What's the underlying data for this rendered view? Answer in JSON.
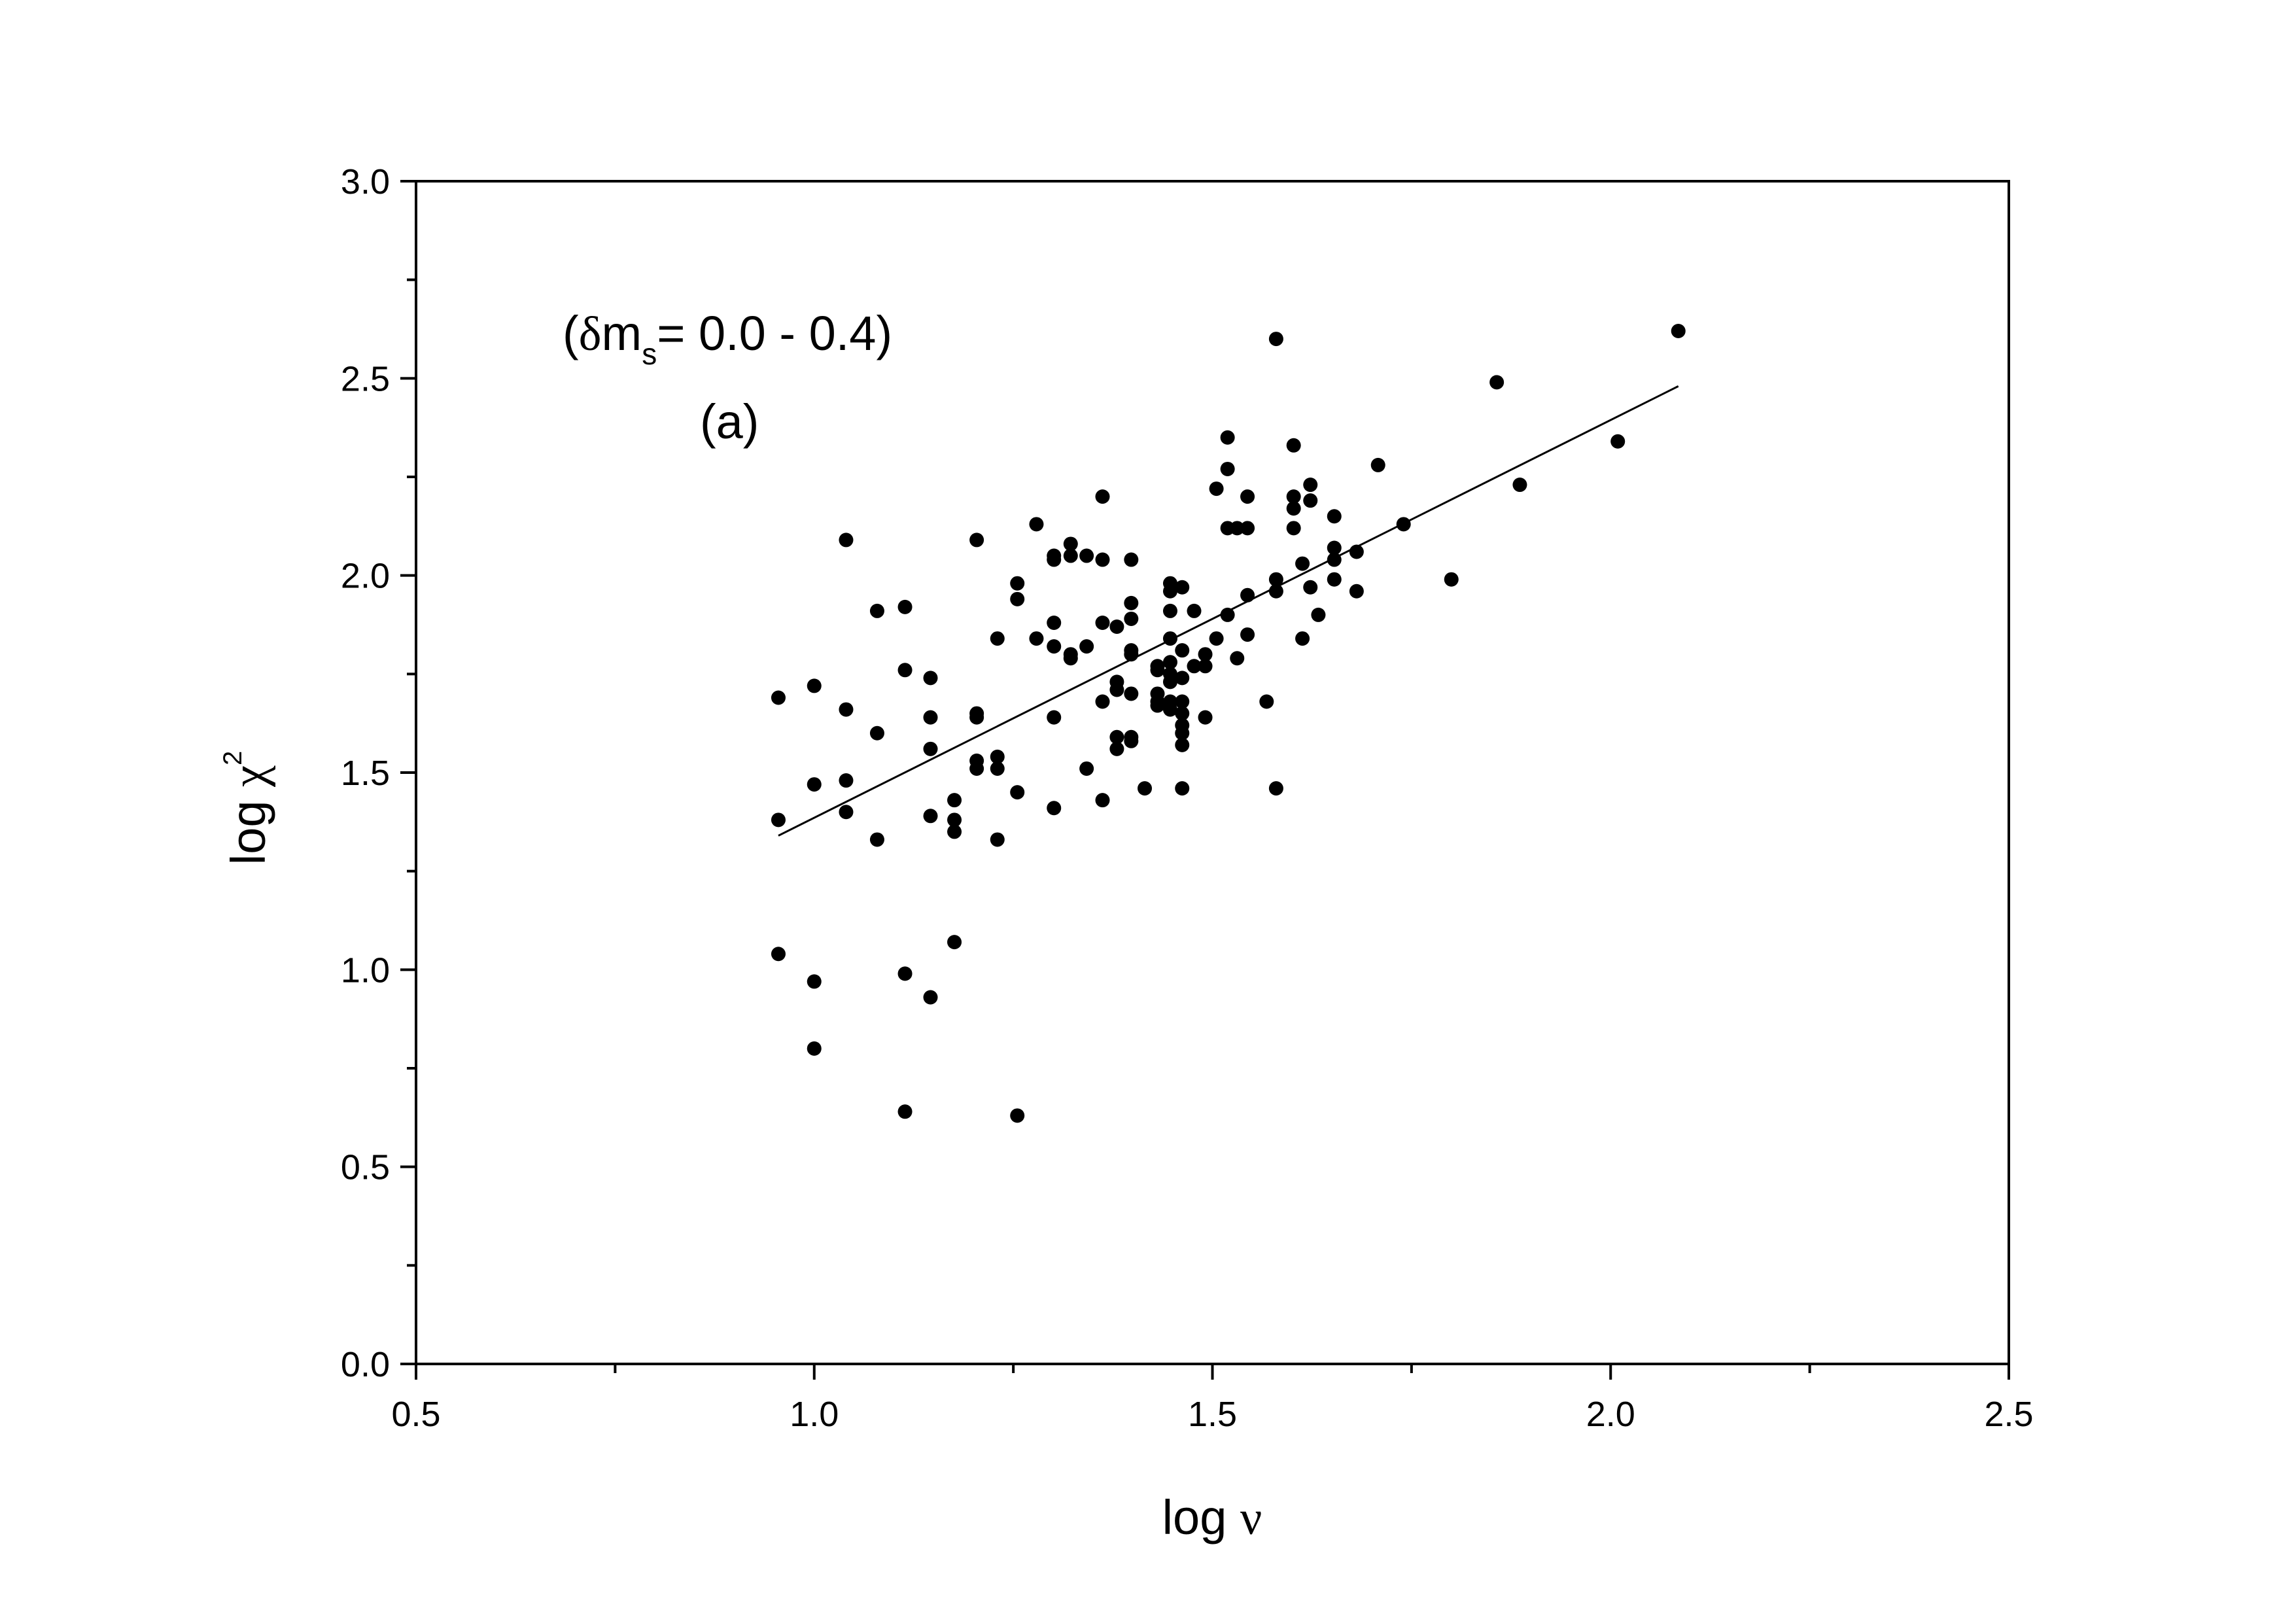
{
  "chart_data": {
    "type": "scatter",
    "xlabel": {
      "prefix": "log ",
      "symbol": "ν"
    },
    "ylabel": {
      "prefix": "log ",
      "symbol": "χ",
      "sup": "2"
    },
    "xlim": [
      0.5,
      2.5
    ],
    "ylim": [
      0.0,
      3.0
    ],
    "xticks": [
      "0.5",
      "1.0",
      "1.5",
      "2.0",
      "2.5"
    ],
    "yticks": [
      "0.0",
      "0.5",
      "1.0",
      "1.5",
      "2.0",
      "2.5",
      "3.0"
    ],
    "x_minor_step": 0.25,
    "y_minor_step": 0.25,
    "grid": false,
    "annotation": {
      "open": "(",
      "delta": "δ",
      "m": "m",
      "sub": "s",
      "rest": "= 0.0 - 0.4)",
      "panel": "(a)"
    },
    "colors": {
      "points": "#000000",
      "fit_line": "#000000"
    },
    "fit_line": {
      "x": [
        0.955,
        2.085
      ],
      "y": [
        1.34,
        2.48
      ]
    },
    "series": [
      {
        "points": [
          [
            0.955,
            1.69
          ],
          [
            0.955,
            1.38
          ],
          [
            0.955,
            1.04
          ],
          [
            1.0,
            1.72
          ],
          [
            1.0,
            1.47
          ],
          [
            1.0,
            0.97
          ],
          [
            1.0,
            0.8
          ],
          [
            1.04,
            2.09
          ],
          [
            1.04,
            1.66
          ],
          [
            1.04,
            1.48
          ],
          [
            1.04,
            1.4
          ],
          [
            1.079,
            1.91
          ],
          [
            1.079,
            1.6
          ],
          [
            1.079,
            1.33
          ],
          [
            1.114,
            1.92
          ],
          [
            1.114,
            1.76
          ],
          [
            1.114,
            0.99
          ],
          [
            1.114,
            0.64
          ],
          [
            1.146,
            1.74
          ],
          [
            1.146,
            1.64
          ],
          [
            1.146,
            1.56
          ],
          [
            1.146,
            1.39
          ],
          [
            1.146,
            0.93
          ],
          [
            1.176,
            1.43
          ],
          [
            1.176,
            1.38
          ],
          [
            1.176,
            1.35
          ],
          [
            1.176,
            1.07
          ],
          [
            1.204,
            2.09
          ],
          [
            1.204,
            1.65
          ],
          [
            1.204,
            1.64
          ],
          [
            1.204,
            1.53
          ],
          [
            1.204,
            1.51
          ],
          [
            1.23,
            1.84
          ],
          [
            1.23,
            1.54
          ],
          [
            1.23,
            1.51
          ],
          [
            1.23,
            1.33
          ],
          [
            1.255,
            1.98
          ],
          [
            1.255,
            1.94
          ],
          [
            1.255,
            1.45
          ],
          [
            1.255,
            0.63
          ],
          [
            1.279,
            2.13
          ],
          [
            1.279,
            1.84
          ],
          [
            1.301,
            2.05
          ],
          [
            1.301,
            2.04
          ],
          [
            1.301,
            1.88
          ],
          [
            1.301,
            1.82
          ],
          [
            1.301,
            1.64
          ],
          [
            1.301,
            1.41
          ],
          [
            1.322,
            2.08
          ],
          [
            1.322,
            2.05
          ],
          [
            1.322,
            1.8
          ],
          [
            1.322,
            1.79
          ],
          [
            1.342,
            2.05
          ],
          [
            1.342,
            1.82
          ],
          [
            1.342,
            1.51
          ],
          [
            1.362,
            2.2
          ],
          [
            1.362,
            2.04
          ],
          [
            1.362,
            1.88
          ],
          [
            1.362,
            1.68
          ],
          [
            1.362,
            1.43
          ],
          [
            1.38,
            1.87
          ],
          [
            1.38,
            1.73
          ],
          [
            1.38,
            1.71
          ],
          [
            1.38,
            1.59
          ],
          [
            1.38,
            1.56
          ],
          [
            1.398,
            2.04
          ],
          [
            1.398,
            1.93
          ],
          [
            1.398,
            1.89
          ],
          [
            1.398,
            1.81
          ],
          [
            1.398,
            1.8
          ],
          [
            1.398,
            1.7
          ],
          [
            1.398,
            1.59
          ],
          [
            1.398,
            1.58
          ],
          [
            1.415,
            1.46
          ],
          [
            1.431,
            1.77
          ],
          [
            1.431,
            1.76
          ],
          [
            1.431,
            1.7
          ],
          [
            1.431,
            1.68
          ],
          [
            1.431,
            1.67
          ],
          [
            1.447,
            1.98
          ],
          [
            1.447,
            1.96
          ],
          [
            1.447,
            1.91
          ],
          [
            1.447,
            1.84
          ],
          [
            1.447,
            1.78
          ],
          [
            1.447,
            1.75
          ],
          [
            1.447,
            1.73
          ],
          [
            1.447,
            1.68
          ],
          [
            1.447,
            1.66
          ],
          [
            1.462,
            1.97
          ],
          [
            1.462,
            1.81
          ],
          [
            1.462,
            1.74
          ],
          [
            1.462,
            1.68
          ],
          [
            1.462,
            1.65
          ],
          [
            1.462,
            1.62
          ],
          [
            1.462,
            1.6
          ],
          [
            1.462,
            1.57
          ],
          [
            1.462,
            1.46
          ],
          [
            1.477,
            1.91
          ],
          [
            1.477,
            1.77
          ],
          [
            1.491,
            1.8
          ],
          [
            1.491,
            1.77
          ],
          [
            1.491,
            1.64
          ],
          [
            1.505,
            2.22
          ],
          [
            1.505,
            1.84
          ],
          [
            1.519,
            2.35
          ],
          [
            1.519,
            2.27
          ],
          [
            1.519,
            2.12
          ],
          [
            1.519,
            1.9
          ],
          [
            1.531,
            2.12
          ],
          [
            1.531,
            1.79
          ],
          [
            1.544,
            2.2
          ],
          [
            1.544,
            2.12
          ],
          [
            1.544,
            1.95
          ],
          [
            1.544,
            1.85
          ],
          [
            1.568,
            1.68
          ],
          [
            1.58,
            2.6
          ],
          [
            1.58,
            1.99
          ],
          [
            1.58,
            1.96
          ],
          [
            1.58,
            1.46
          ],
          [
            1.602,
            2.33
          ],
          [
            1.602,
            2.2
          ],
          [
            1.602,
            2.17
          ],
          [
            1.602,
            2.12
          ],
          [
            1.613,
            2.03
          ],
          [
            1.613,
            1.84
          ],
          [
            1.623,
            2.23
          ],
          [
            1.623,
            2.19
          ],
          [
            1.623,
            1.97
          ],
          [
            1.633,
            1.9
          ],
          [
            1.653,
            2.15
          ],
          [
            1.653,
            2.07
          ],
          [
            1.653,
            2.04
          ],
          [
            1.653,
            1.99
          ],
          [
            1.681,
            2.06
          ],
          [
            1.681,
            1.96
          ],
          [
            1.708,
            2.28
          ],
          [
            1.74,
            2.13
          ],
          [
            1.8,
            1.99
          ],
          [
            1.857,
            2.49
          ],
          [
            1.886,
            2.23
          ],
          [
            2.009,
            2.34
          ],
          [
            2.085,
            2.62
          ]
        ]
      }
    ]
  }
}
